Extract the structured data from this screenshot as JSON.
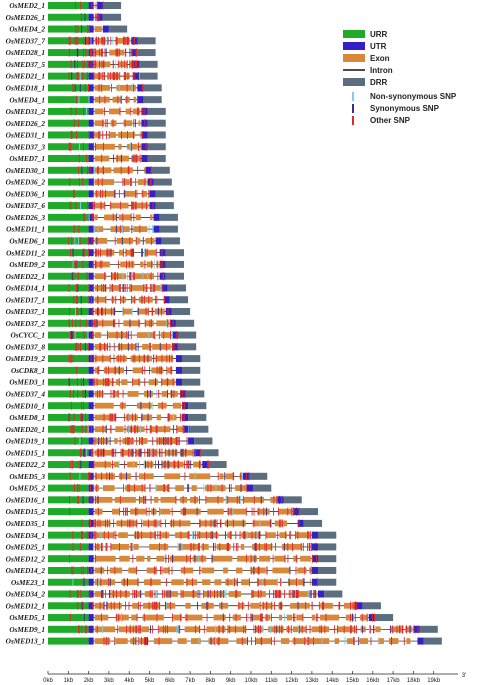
{
  "colors": {
    "urr": "#1faa2a",
    "utr": "#3321c8",
    "exon": "#d9883a",
    "intron": "#111111",
    "drr": "#5a6e80",
    "nonsyn": "#7fd0e6",
    "syn": "#3a2a8a",
    "other": "#e0282e"
  },
  "legend": {
    "urr": "URR",
    "utr": "UTR",
    "exon": "Exon",
    "intron": "Intron",
    "drr": "DRR",
    "nonsyn": "Non-synonymous  SNP",
    "syn": "Synonymous  SNP",
    "other": "Other SNP"
  },
  "axis": {
    "ticks": [
      "0kb",
      "1kb",
      "2kb",
      "3kb",
      "4kb",
      "5kb",
      "6kb",
      "7kb",
      "8kb",
      "9kb",
      "10kb",
      "11kb",
      "12kb",
      "13kb",
      "14kb",
      "15kb",
      "16kb",
      "17kb",
      "18kb",
      "19kb"
    ],
    "end_label": "3'"
  },
  "genes": [
    {
      "name": "OsMED2_1",
      "length": 3.6,
      "snps": 6
    },
    {
      "name": "OsMED26_1",
      "length": 3.6,
      "snps": 6
    },
    {
      "name": "OsMED4_2",
      "length": 3.9,
      "snps": 5
    },
    {
      "name": "OsMED37_7",
      "length": 5.3,
      "snps": 40
    },
    {
      "name": "OsMED28_1",
      "length": 5.3,
      "snps": 30
    },
    {
      "name": "OsMED37_5",
      "length": 5.4,
      "snps": 35
    },
    {
      "name": "OsMED21_1",
      "length": 5.4,
      "snps": 30
    },
    {
      "name": "OsMED18_1",
      "length": 5.6,
      "snps": 14
    },
    {
      "name": "OsMED4_1",
      "length": 5.6,
      "snps": 10
    },
    {
      "name": "OsMED31_2",
      "length": 5.8,
      "snps": 12
    },
    {
      "name": "OsMED26_2",
      "length": 5.8,
      "snps": 10
    },
    {
      "name": "OsMED31_1",
      "length": 5.8,
      "snps": 14
    },
    {
      "name": "OsMED37_3",
      "length": 5.8,
      "snps": 14
    },
    {
      "name": "OsMED7_1",
      "length": 5.8,
      "snps": 12
    },
    {
      "name": "OsMED30_1",
      "length": 6.0,
      "snps": 14
    },
    {
      "name": "OsMED36_2",
      "length": 6.1,
      "snps": 14
    },
    {
      "name": "OsMED36_1",
      "length": 6.2,
      "snps": 14
    },
    {
      "name": "OsMED37_6",
      "length": 6.2,
      "snps": 20
    },
    {
      "name": "OsMED26_3",
      "length": 6.4,
      "snps": 10
    },
    {
      "name": "OsMED11_1",
      "length": 6.4,
      "snps": 12
    },
    {
      "name": "OsMED6_1",
      "length": 6.5,
      "snps": 16
    },
    {
      "name": "OsMED11_2",
      "length": 6.7,
      "snps": 30
    },
    {
      "name": "OsMED9_2",
      "length": 6.7,
      "snps": 22
    },
    {
      "name": "OsMED22_1",
      "length": 6.7,
      "snps": 26
    },
    {
      "name": "OsMED14_1",
      "length": 6.8,
      "snps": 30
    },
    {
      "name": "OsMED17_1",
      "length": 6.9,
      "snps": 24
    },
    {
      "name": "OsMED37_1",
      "length": 7.0,
      "snps": 26
    },
    {
      "name": "OsMED37_2",
      "length": 7.2,
      "snps": 26
    },
    {
      "name": "OsCYCC_1",
      "length": 7.3,
      "snps": 30
    },
    {
      "name": "OsMED37_8",
      "length": 7.3,
      "snps": 28
    },
    {
      "name": "OsMED19_2",
      "length": 7.5,
      "snps": 26
    },
    {
      "name": "OsCDK8_1",
      "length": 7.5,
      "snps": 20
    },
    {
      "name": "OsMED3_1",
      "length": 7.5,
      "snps": 24
    },
    {
      "name": "OsMED37_4",
      "length": 7.7,
      "snps": 28
    },
    {
      "name": "OsMED10_1",
      "length": 7.8,
      "snps": 10
    },
    {
      "name": "OsMED8_1",
      "length": 7.8,
      "snps": 30
    },
    {
      "name": "OsMED20_1",
      "length": 7.9,
      "snps": 36
    },
    {
      "name": "OsMED19_1",
      "length": 8.1,
      "snps": 40
    },
    {
      "name": "OsMED15_1",
      "length": 8.4,
      "snps": 70
    },
    {
      "name": "OsMED22_2",
      "length": 8.8,
      "snps": 40
    },
    {
      "name": "OsMED5_3",
      "length": 10.8,
      "snps": 24
    },
    {
      "name": "OsMED5_2",
      "length": 11.0,
      "snps": 30
    },
    {
      "name": "OsMED16_1",
      "length": 12.5,
      "snps": 34
    },
    {
      "name": "OsMED15_2",
      "length": 13.3,
      "snps": 36
    },
    {
      "name": "OsMED35_1",
      "length": 13.5,
      "snps": 50
    },
    {
      "name": "OsMED34_1",
      "length": 14.2,
      "snps": 60
    },
    {
      "name": "OsMED25_1",
      "length": 14.2,
      "snps": 56
    },
    {
      "name": "OsMED12_2",
      "length": 14.2,
      "snps": 24
    },
    {
      "name": "OsMED14_2",
      "length": 14.2,
      "snps": 30
    },
    {
      "name": "OsME23_1",
      "length": 14.2,
      "snps": 36
    },
    {
      "name": "OsMED34_2",
      "length": 14.5,
      "snps": 80
    },
    {
      "name": "OsMED12_1",
      "length": 16.4,
      "snps": 60
    },
    {
      "name": "OsMED5_1",
      "length": 17.0,
      "snps": 40
    },
    {
      "name": "OsMED9_1",
      "length": 19.2,
      "snps": 90
    },
    {
      "name": "OsMED13_1",
      "length": 19.4,
      "snps": 44
    }
  ]
}
